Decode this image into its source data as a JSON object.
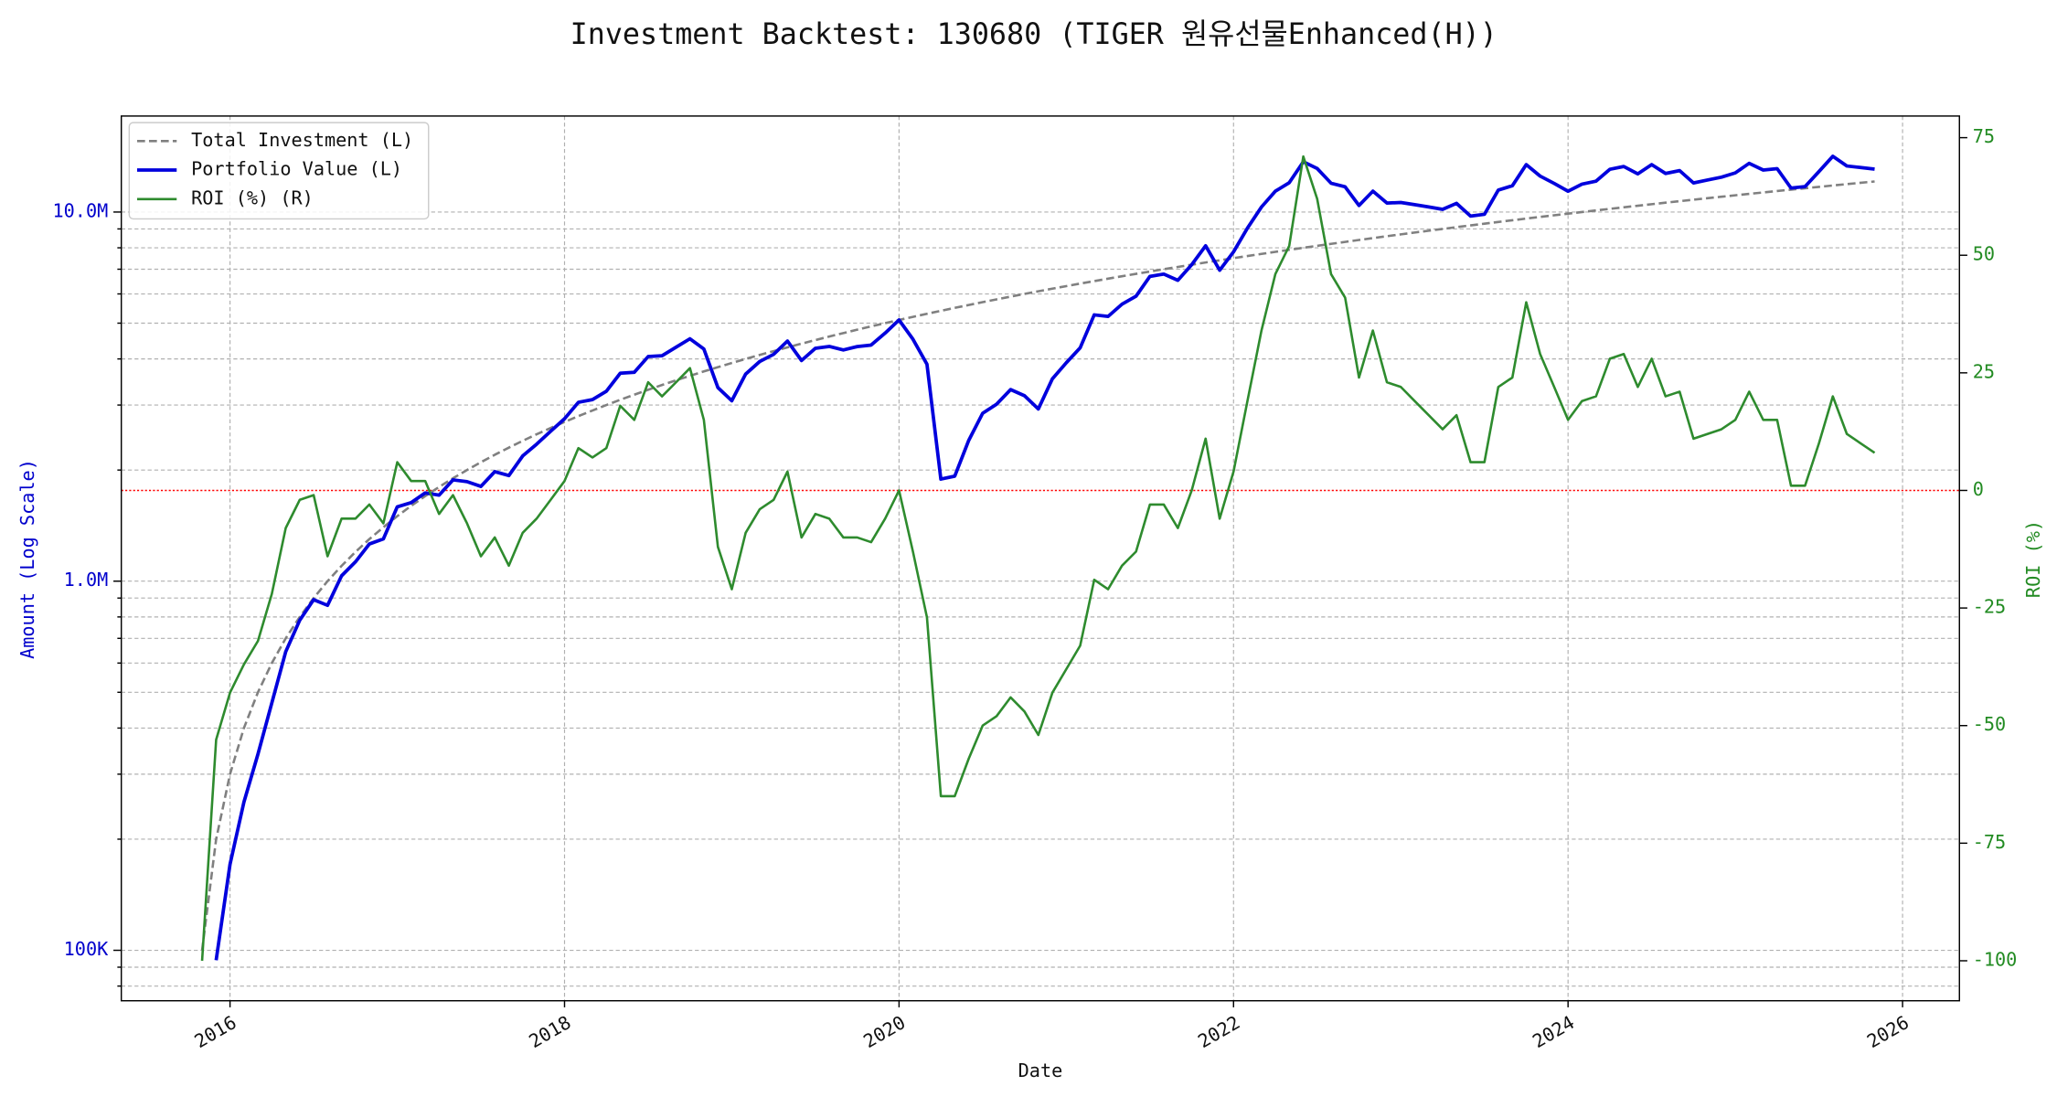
{
  "chart_data": {
    "type": "line",
    "title": "Investment Backtest: 130680 (TIGER 원유선물Enhanced(H))",
    "x_label": "Date",
    "y_label": "Amount (Log Scale)",
    "y2_label": "ROI (%)",
    "y_label_color": "#0000cc",
    "y2_label_color": "#228b22",
    "xlim": [
      2015.35,
      2026.34
    ],
    "xticks": [
      2016,
      2018,
      2020,
      2022,
      2024,
      2026
    ],
    "ylog": true,
    "ylim": [
      73000,
      18200000
    ],
    "yticks": [
      {
        "value": 100000,
        "label": "100K"
      },
      {
        "value": 1000000,
        "label": "1.0M"
      },
      {
        "value": 10000000,
        "label": "10.0M"
      }
    ],
    "yminorticks": [
      80000,
      90000,
      200000,
      300000,
      400000,
      500000,
      600000,
      700000,
      800000,
      900000,
      2000000,
      3000000,
      4000000,
      5000000,
      6000000,
      7000000,
      8000000,
      9000000
    ],
    "y2lim": [
      -108.5,
      79.6
    ],
    "y2ticks": [
      -100,
      -75,
      -50,
      -25,
      0,
      25,
      50,
      75
    ],
    "grid": true,
    "legend": "upper left",
    "hline": {
      "axis": "y2",
      "value": 0,
      "color": "#ff0000"
    },
    "x": [
      2015.833,
      2015.917,
      2016.0,
      2016.083,
      2016.167,
      2016.25,
      2016.333,
      2016.417,
      2016.5,
      2016.583,
      2016.667,
      2016.75,
      2016.833,
      2016.917,
      2017.0,
      2017.083,
      2017.167,
      2017.25,
      2017.333,
      2017.417,
      2017.5,
      2017.583,
      2017.667,
      2017.75,
      2017.833,
      2017.917,
      2018.0,
      2018.083,
      2018.167,
      2018.25,
      2018.333,
      2018.417,
      2018.5,
      2018.583,
      2018.667,
      2018.75,
      2018.833,
      2018.917,
      2019.0,
      2019.083,
      2019.167,
      2019.25,
      2019.333,
      2019.417,
      2019.5,
      2019.583,
      2019.667,
      2019.75,
      2019.833,
      2019.917,
      2020.0,
      2020.083,
      2020.167,
      2020.25,
      2020.333,
      2020.417,
      2020.5,
      2020.583,
      2020.667,
      2020.75,
      2020.833,
      2020.917,
      2021.0,
      2021.083,
      2021.167,
      2021.25,
      2021.333,
      2021.417,
      2021.5,
      2021.583,
      2021.667,
      2021.75,
      2021.833,
      2021.917,
      2022.0,
      2022.083,
      2022.167,
      2022.25,
      2022.333,
      2022.417,
      2022.5,
      2022.583,
      2022.667,
      2022.75,
      2022.833,
      2022.917,
      2023.0,
      2023.083,
      2023.167,
      2023.25,
      2023.333,
      2023.417,
      2023.5,
      2023.583,
      2023.667,
      2023.75,
      2023.833,
      2023.917,
      2024.0,
      2024.083,
      2024.167,
      2024.25,
      2024.333,
      2024.417,
      2024.5,
      2024.583,
      2024.667,
      2024.75,
      2024.833,
      2024.917,
      2025.0,
      2025.083,
      2025.167,
      2025.25,
      2025.333,
      2025.417,
      2025.5,
      2025.583,
      2025.667,
      2025.75,
      2025.833
    ],
    "series": [
      {
        "name": "Total Investment (L)",
        "color": "#808080",
        "linestyle": "dashed",
        "linewidth": 1.8,
        "axis": "y",
        "values": [
          100000,
          200000,
          300000,
          400000,
          500000,
          600000,
          700000,
          800000,
          900000,
          1000000,
          1100000,
          1200000,
          1300000,
          1400000,
          1500000,
          1600000,
          1700000,
          1800000,
          1900000,
          2000000,
          2100000,
          2200000,
          2300000,
          2400000,
          2500000,
          2600000,
          2700000,
          2800000,
          2900000,
          3000000,
          3100000,
          3200000,
          3300000,
          3400000,
          3500000,
          3600000,
          3700000,
          3800000,
          3900000,
          4000000,
          4100000,
          4200000,
          4300000,
          4400000,
          4500000,
          4600000,
          4700000,
          4800000,
          4900000,
          5000000,
          5100000,
          5200000,
          5300000,
          5400000,
          5500000,
          5600000,
          5700000,
          5800000,
          5900000,
          6000000,
          6100000,
          6200000,
          6300000,
          6400000,
          6500000,
          6600000,
          6700000,
          6800000,
          6900000,
          7000000,
          7100000,
          7200000,
          7300000,
          7400000,
          7500000,
          7600000,
          7700000,
          7800000,
          7900000,
          8000000,
          8100000,
          8200000,
          8300000,
          8400000,
          8500000,
          8600000,
          8700000,
          8800000,
          8900000,
          9000000,
          9100000,
          9200000,
          9300000,
          9400000,
          9500000,
          9600000,
          9700000,
          9800000,
          9900000,
          10000000,
          10100000,
          10200000,
          10300000,
          10400000,
          10500000,
          10600000,
          10700000,
          10800000,
          10900000,
          11000000,
          11100000,
          11200000,
          11300000,
          11400000,
          11500000,
          11600000,
          11700000,
          11800000,
          11900000,
          12000000,
          12100000
        ]
      },
      {
        "name": "Portfolio Value (L)",
        "color": "#0000dd",
        "linestyle": "solid",
        "linewidth": 2.6,
        "axis": "y",
        "values": [
          null,
          94000,
          171000,
          252000,
          340000,
          468000,
          644000,
          784000,
          891000,
          860000,
          1034000,
          1128000,
          1261000,
          1302000,
          1590000,
          1632000,
          1734000,
          1710000,
          1881000,
          1860000,
          1806000,
          1980000,
          1932000,
          2184000,
          2350000,
          2548000,
          2754000,
          3052000,
          3103000,
          3270000,
          3658000,
          3680000,
          4059000,
          4080000,
          4305000,
          4536000,
          4255000,
          3344000,
          3081000,
          3640000,
          3936000,
          4116000,
          4472000,
          3960000,
          4275000,
          4324000,
          4230000,
          4320000,
          4361000,
          4700000,
          5100000,
          4524000,
          3869000,
          1890000,
          1925000,
          2408000,
          2850000,
          3016000,
          3304000,
          3180000,
          2928000,
          3534000,
          3906000,
          4288000,
          5265000,
          5214000,
          5628000,
          5916000,
          6693000,
          6790000,
          6532000,
          7200000,
          8103000,
          6956000,
          7800000,
          9044000,
          10318000,
          11388000,
          12008000,
          13680000,
          13122000,
          11972000,
          11703000,
          10416000,
          11390000,
          10578000,
          10614000,
          10472000,
          10324000,
          10170000,
          10556000,
          9752000,
          9858000,
          11468000,
          11780000,
          13440000,
          12513000,
          11956000,
          11385000,
          11900000,
          12120000,
          13056000,
          13287000,
          12688000,
          13440000,
          12720000,
          12947000,
          11988000,
          12208000,
          12430000,
          12765000,
          13552000,
          12995000,
          13110000,
          11615000,
          11716000,
          12870000,
          14160000,
          13328000,
          13200000,
          13068000
        ]
      },
      {
        "name": "ROI (%) (R)",
        "color": "#2e8b2e",
        "linestyle": "solid",
        "linewidth": 1.8,
        "axis": "y2",
        "values": [
          -100,
          -53,
          -43,
          -37,
          -32,
          -22,
          -8,
          -2,
          -1,
          -14,
          -6,
          -6,
          -3,
          -7,
          6,
          2,
          2,
          -5,
          -1,
          -7,
          -14,
          -10,
          -16,
          -9,
          -6,
          -2,
          2,
          9,
          7,
          9,
          18,
          15,
          23,
          20,
          23,
          26,
          15,
          -12,
          -21,
          -9,
          -4,
          -2,
          4,
          -10,
          -5,
          -6,
          -10,
          -10,
          -11,
          -6,
          0,
          -13,
          -27,
          -65,
          -65,
          -57,
          -50,
          -48,
          -44,
          -47,
          -52,
          -43,
          -38,
          -33,
          -19,
          -21,
          -16,
          -13,
          -3,
          -3,
          -8,
          0,
          11,
          -6,
          4,
          19,
          34,
          46,
          52,
          71,
          62,
          46,
          41,
          24,
          34,
          23,
          22,
          19,
          16,
          13,
          16,
          6,
          6,
          22,
          24,
          40,
          29,
          22,
          15,
          19,
          20,
          28,
          29,
          22,
          28,
          20,
          21,
          11,
          12,
          13,
          15,
          21,
          15,
          15,
          1,
          1,
          10,
          20,
          12,
          10,
          8
        ]
      }
    ]
  }
}
